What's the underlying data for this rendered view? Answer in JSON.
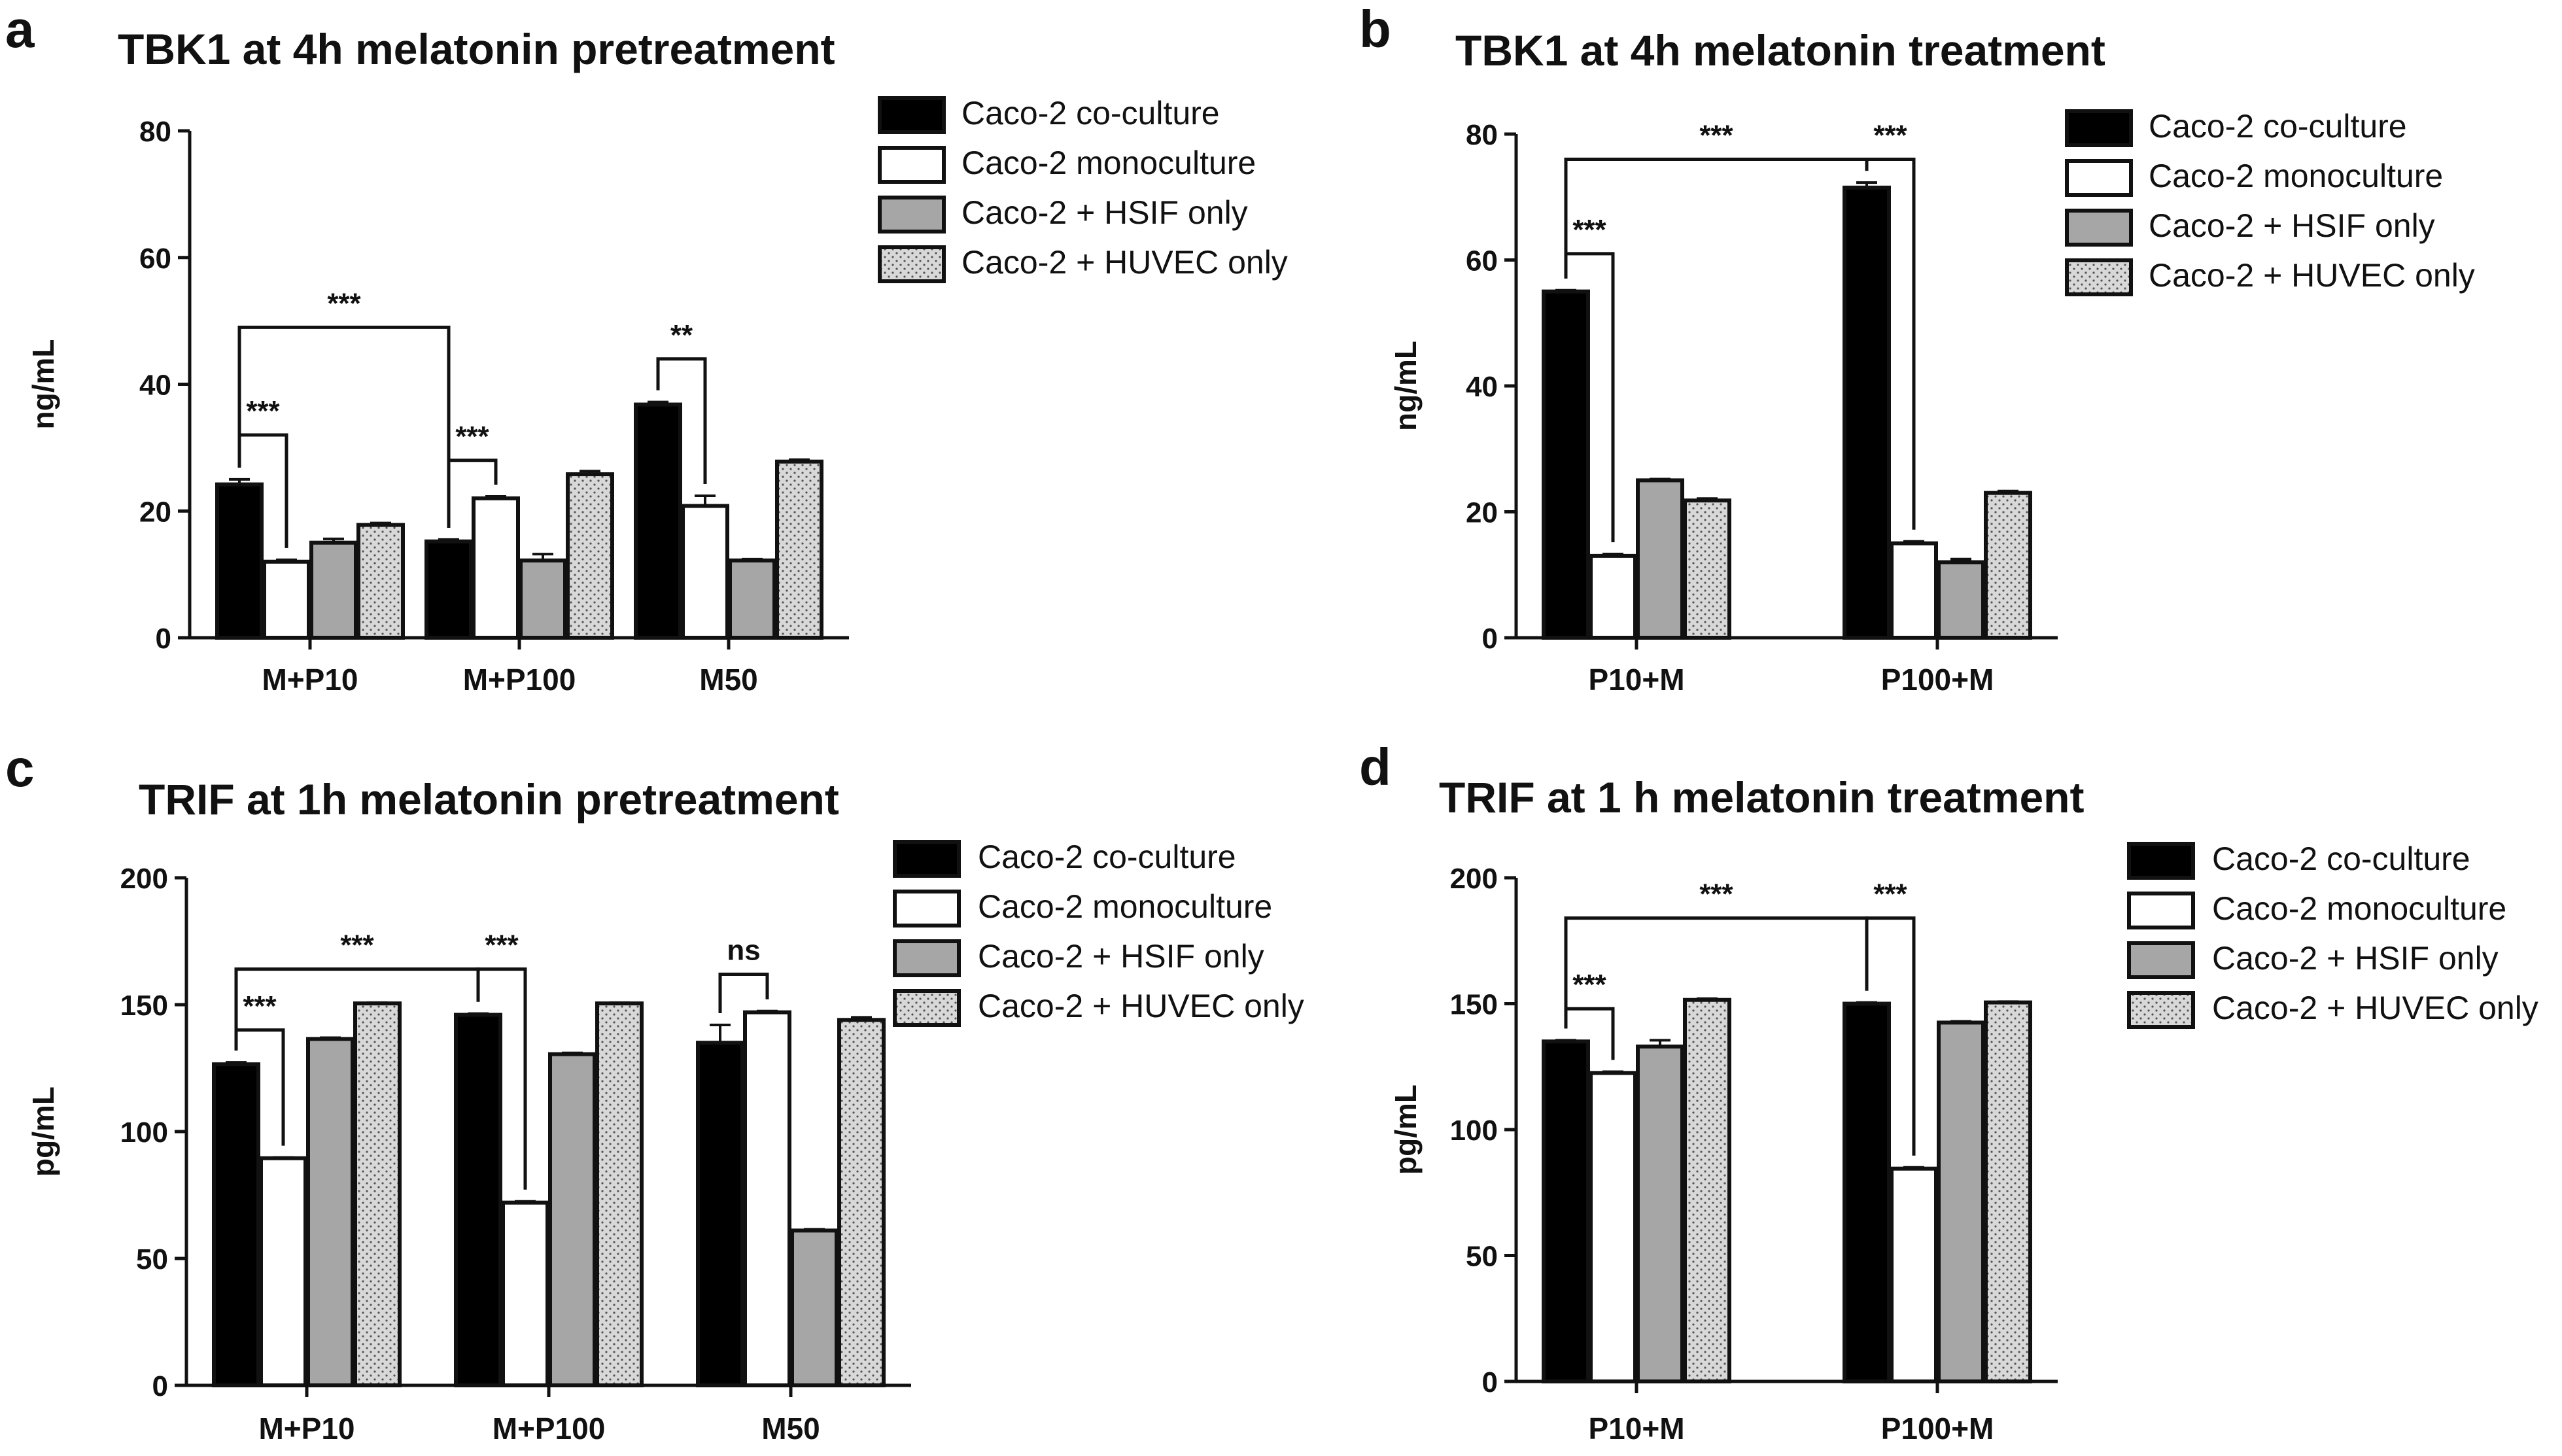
{
  "colors": {
    "coculture": "#000000",
    "monoculture": "#ffffff",
    "hsif": "#a6a6a6",
    "huvec": "#d8d8d8",
    "stroke": "#111111"
  },
  "chart_data": [
    {
      "panel": "a",
      "type": "bar",
      "title": "TBK1 at 4h melatonin pretreatment",
      "xlabel": "",
      "ylabel": "ng/mL",
      "ylim": [
        0,
        80
      ],
      "yticks": [
        "0",
        "20",
        "40",
        "60",
        "80"
      ],
      "categories": [
        "M+P10",
        "M+P100",
        "M50"
      ],
      "legend_position": "top-right",
      "series": [
        {
          "name": "Caco-2 co-culture",
          "values": [
            24.2,
            15.2,
            36.8
          ],
          "errors": [
            0.8,
            0.3,
            0.4
          ]
        },
        {
          "name": "Caco-2 monoculture",
          "values": [
            12.0,
            22.0,
            20.8
          ],
          "errors": [
            0.3,
            0.3,
            1.6
          ]
        },
        {
          "name": "Caco-2 + HSIF only",
          "values": [
            15.0,
            12.2,
            12.2
          ],
          "errors": [
            0.6,
            1.0,
            0.2
          ]
        },
        {
          "name": "Caco-2 + HUVEC only",
          "values": [
            17.8,
            25.8,
            27.8
          ],
          "errors": [
            0.3,
            0.5,
            0.3
          ]
        }
      ],
      "significance": [
        {
          "label": "***",
          "from": [
            0,
            0
          ],
          "to": [
            0,
            1
          ],
          "level": 32
        },
        {
          "label": "***",
          "from": [
            0,
            0
          ],
          "to": [
            1,
            0
          ],
          "level": 49
        },
        {
          "label": "***",
          "from": [
            1,
            0
          ],
          "to": [
            1,
            1
          ],
          "level": 28
        },
        {
          "label": "**",
          "from": [
            2,
            0
          ],
          "to": [
            2,
            1
          ],
          "level": 44
        }
      ]
    },
    {
      "panel": "b",
      "type": "bar",
      "title": "TBK1 at 4h melatonin treatment",
      "xlabel": "",
      "ylabel": "ng/mL",
      "ylim": [
        0,
        80
      ],
      "yticks": [
        "0",
        "20",
        "40",
        "60",
        "80"
      ],
      "categories": [
        "P10+M",
        "P100+M"
      ],
      "legend_position": "top-right",
      "series": [
        {
          "name": "Caco-2 co-culture",
          "values": [
            55.0,
            71.5
          ],
          "errors": [
            0.2,
            0.8
          ]
        },
        {
          "name": "Caco-2 monoculture",
          "values": [
            13.0,
            15.0
          ],
          "errors": [
            0.3,
            0.3
          ]
        },
        {
          "name": "Caco-2 + HSIF only",
          "values": [
            25.0,
            12.0
          ],
          "errors": [
            0.2,
            0.5
          ]
        },
        {
          "name": "Caco-2 + HUVEC only",
          "values": [
            21.8,
            23.0
          ],
          "errors": [
            0.3,
            0.3
          ]
        }
      ],
      "significance": [
        {
          "label": "***",
          "from": [
            0,
            0
          ],
          "to": [
            0,
            1
          ],
          "level": 61
        },
        {
          "label": "***",
          "from": [
            0,
            0
          ],
          "to": [
            1,
            0
          ],
          "level": 76
        },
        {
          "label": "***",
          "from": [
            1,
            0
          ],
          "to": [
            1,
            1
          ],
          "level": 76
        }
      ]
    },
    {
      "panel": "c",
      "type": "bar",
      "title": "TRIF at 1h melatonin pretreatment",
      "xlabel": "",
      "ylabel": "pg/mL",
      "ylim": [
        0,
        200
      ],
      "yticks": [
        "0",
        "50",
        "100",
        "150",
        "200"
      ],
      "categories": [
        "M+P10",
        "M+P100",
        "M50"
      ],
      "legend_position": "top-right",
      "series": [
        {
          "name": "Caco-2 co-culture",
          "values": [
            126.5,
            146.0,
            135.0
          ],
          "errors": [
            0.8,
            0.5,
            7.0
          ]
        },
        {
          "name": "Caco-2 monoculture",
          "values": [
            89.5,
            72.0,
            147.0
          ],
          "errors": [
            0.3,
            0.5,
            0.5
          ]
        },
        {
          "name": "Caco-2 + HSIF only",
          "values": [
            136.5,
            130.5,
            61.0
          ],
          "errors": [
            0.5,
            0.5,
            0.5
          ]
        },
        {
          "name": "Caco-2 + HUVEC only",
          "values": [
            150.5,
            150.5,
            144.0
          ],
          "errors": [
            0.3,
            0.3,
            1.0
          ]
        }
      ],
      "significance": [
        {
          "label": "***",
          "from": [
            0,
            0
          ],
          "to": [
            0,
            1
          ],
          "level": 140
        },
        {
          "label": "***",
          "from": [
            0,
            0
          ],
          "to": [
            1,
            0
          ],
          "level": 164
        },
        {
          "label": "***",
          "from": [
            1,
            0
          ],
          "to": [
            1,
            1
          ],
          "level": 164
        },
        {
          "label": "ns",
          "from": [
            2,
            0
          ],
          "to": [
            2,
            1
          ],
          "level": 162
        }
      ]
    },
    {
      "panel": "d",
      "type": "bar",
      "title": "TRIF at 1 h melatonin treatment",
      "xlabel": "",
      "ylabel": "pg/mL",
      "ylim": [
        0,
        200
      ],
      "yticks": [
        "0",
        "50",
        "100",
        "150",
        "200"
      ],
      "categories": [
        "P10+M",
        "P100+M"
      ],
      "legend_position": "top-right",
      "series": [
        {
          "name": "Caco-2 co-culture",
          "values": [
            135.0,
            150.0
          ],
          "errors": [
            0.5,
            0.5
          ]
        },
        {
          "name": "Caco-2 monoculture",
          "values": [
            122.5,
            84.5
          ],
          "errors": [
            0.5,
            0.5
          ]
        },
        {
          "name": "Caco-2 + HSIF only",
          "values": [
            133.0,
            142.5
          ],
          "errors": [
            2.5,
            0.5
          ]
        },
        {
          "name": "Caco-2 + HUVEC only",
          "values": [
            151.5,
            150.5
          ],
          "errors": [
            0.5,
            0.3
          ]
        }
      ],
      "significance": [
        {
          "label": "***",
          "from": [
            0,
            0
          ],
          "to": [
            0,
            1
          ],
          "level": 148
        },
        {
          "label": "***",
          "from": [
            0,
            0
          ],
          "to": [
            1,
            0
          ],
          "level": 184
        },
        {
          "label": "***",
          "from": [
            1,
            0
          ],
          "to": [
            1,
            1
          ],
          "level": 184
        }
      ]
    }
  ]
}
